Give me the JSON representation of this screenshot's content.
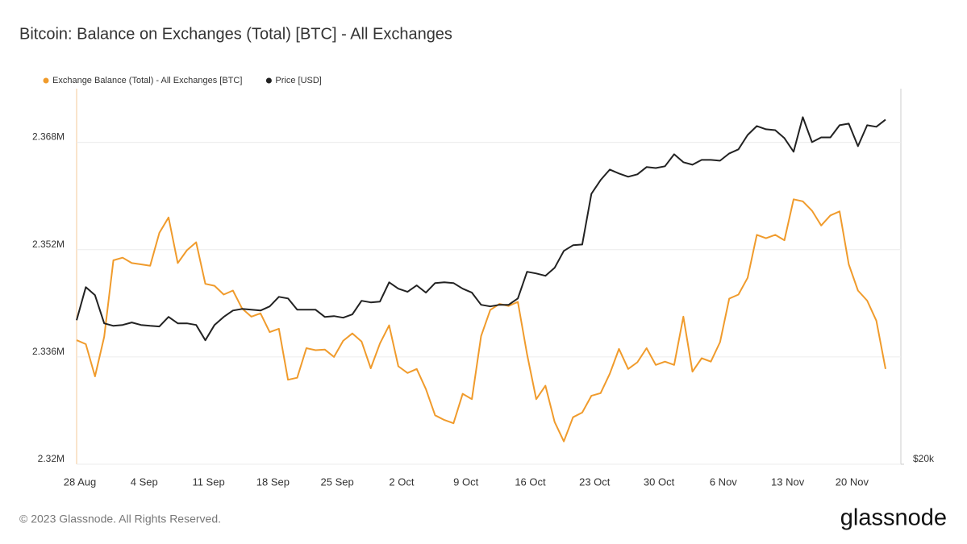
{
  "chart_data": {
    "type": "line",
    "title": "Bitcoin: Balance on Exchanges (Total) [BTC] - All Exchanges",
    "footer": "© 2023 Glassnode. All Rights Reserved.",
    "brand": "glassnode",
    "categories": [
      "28 Aug",
      null,
      null,
      null,
      null,
      null,
      null,
      "4 Sep",
      null,
      null,
      null,
      null,
      null,
      null,
      "11 Sep",
      null,
      null,
      null,
      null,
      null,
      null,
      "18 Sep",
      null,
      null,
      null,
      null,
      null,
      null,
      "25 Sep",
      null,
      null,
      null,
      null,
      null,
      null,
      "2 Oct",
      null,
      null,
      null,
      null,
      null,
      null,
      "9 Oct",
      null,
      null,
      null,
      null,
      null,
      null,
      "16 Oct",
      null,
      null,
      null,
      null,
      null,
      null,
      "23 Oct",
      null,
      null,
      null,
      null,
      null,
      null,
      "30 Oct",
      null,
      null,
      null,
      null,
      null,
      null,
      "6 Nov",
      null,
      null,
      null,
      null,
      null,
      null,
      "13 Nov",
      null,
      null,
      null,
      null,
      null,
      null,
      "20 Nov",
      null,
      null,
      null,
      null
    ],
    "series": [
      {
        "name": "Exchange Balance (Total) - All Exchanges [BTC]",
        "color": "#f09b2c",
        "values": [
          2.3385,
          2.3379,
          2.3331,
          2.339,
          2.3504,
          2.3508,
          2.35,
          2.3498,
          2.3496,
          2.3545,
          2.3568,
          2.35,
          2.3519,
          2.3531,
          2.3469,
          2.3466,
          2.3453,
          2.3459,
          2.3432,
          2.342,
          2.3425,
          2.3397,
          2.3402,
          2.3326,
          2.3329,
          2.3373,
          2.337,
          2.3371,
          2.336,
          2.3384,
          2.3395,
          2.3383,
          2.3343,
          2.338,
          2.3407,
          2.3346,
          2.3336,
          2.3342,
          2.3312,
          2.3273,
          2.3266,
          2.3261,
          2.3305,
          2.3297,
          2.3391,
          2.343,
          2.3439,
          2.3436,
          2.3442,
          2.3364,
          2.3297,
          2.3317,
          2.3263,
          2.3234,
          2.327,
          2.3277,
          2.3302,
          2.3306,
          2.3335,
          2.3372,
          2.3342,
          2.3352,
          2.3373,
          2.3348,
          2.3353,
          2.3348,
          2.342,
          2.3338,
          2.3358,
          2.3353,
          2.3382,
          2.3447,
          2.3453,
          2.3478,
          2.3542,
          2.3537,
          2.3542,
          2.3534,
          2.3595,
          2.3592,
          2.3578,
          2.3556,
          2.3571,
          2.3577,
          2.3498,
          2.3459,
          2.3444,
          2.3414,
          2.3342
        ]
      },
      {
        "name": "Price [USD]",
        "color": "#222222",
        "axis": "y2",
        "values": [
          26090,
          27730,
          27320,
          25940,
          25820,
          25860,
          25980,
          25860,
          25820,
          25790,
          26250,
          25940,
          25940,
          25860,
          25140,
          25860,
          26250,
          26560,
          26640,
          26600,
          26560,
          26760,
          27240,
          27160,
          26600,
          26600,
          26600,
          26250,
          26290,
          26210,
          26370,
          27040,
          26960,
          27000,
          27980,
          27650,
          27490,
          27820,
          27450,
          27940,
          27980,
          27940,
          27650,
          27450,
          26840,
          26760,
          26840,
          26840,
          27160,
          28530,
          28440,
          28320,
          28740,
          29650,
          29960,
          30000,
          32950,
          33790,
          34450,
          34200,
          34000,
          34150,
          34610,
          34550,
          34660,
          35440,
          34920,
          34760,
          35070,
          35070,
          35020,
          35490,
          35760,
          36720,
          37330,
          37110,
          37050,
          36510,
          35600,
          37950,
          36240,
          36560,
          36560,
          37390,
          37500,
          35970,
          37390,
          37280,
          37780
        ]
      }
    ],
    "ylim": [
      2.32,
      2.376
    ],
    "yticks": [
      {
        "value": 2.32,
        "label": "2.32M"
      },
      {
        "value": 2.336,
        "label": "2.336M"
      },
      {
        "value": 2.352,
        "label": "2.352M"
      },
      {
        "value": 2.368,
        "label": "2.368M"
      }
    ],
    "y2lim": [
      20000,
      40000
    ],
    "y2log": true,
    "y2ticks": [
      {
        "value": 20000,
        "label": "$20k"
      }
    ],
    "grid": true,
    "legend": "top-left"
  }
}
